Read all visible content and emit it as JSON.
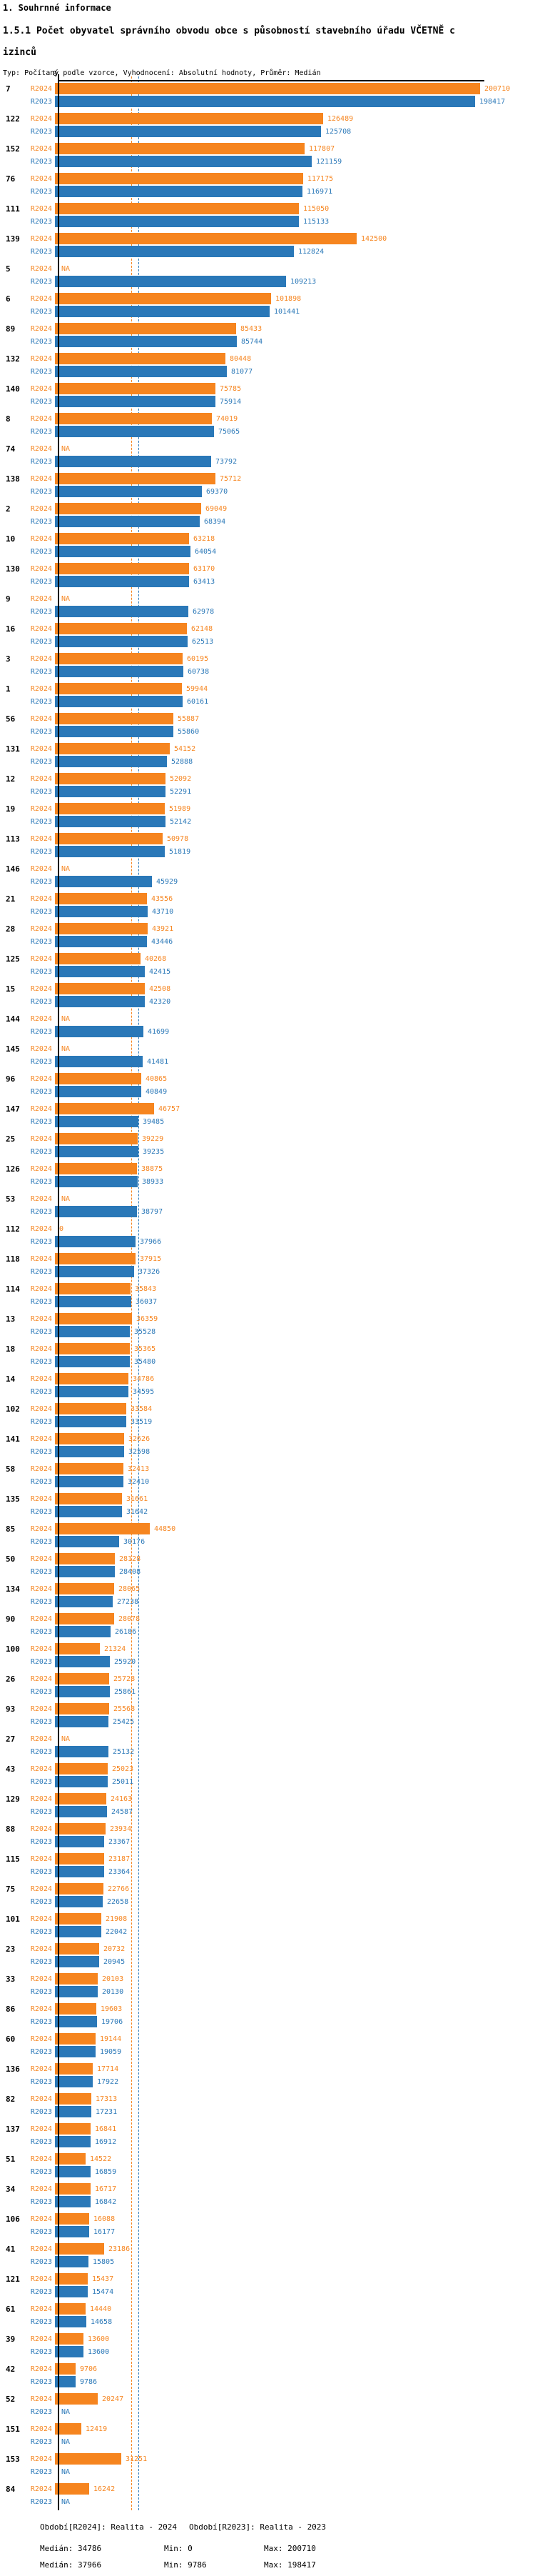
{
  "header": {
    "title": "1. Souhrnné informace",
    "subtitle_line1": "1.5.1 Počet obyvatel správního obvodu obce s působností stavebního úřadu VČETNĚ c",
    "subtitle_line2": "izinců",
    "meta": "Typ: Počítaný podle vzorce, Vyhodnocení: Absolutní hodnoty, Průměr: Medián"
  },
  "chart_data": {
    "type": "bar",
    "orientation": "horizontal",
    "axis": {
      "zero_label": "0",
      "max_value": 200710
    },
    "na_label": "NA",
    "series": [
      {
        "label": "R2024",
        "key": "r2024",
        "color": "#F6851F",
        "period": "Realita - 2024"
      },
      {
        "label": "R2023",
        "key": "r2023",
        "color": "#2A78B8",
        "period": "Realita - 2023"
      }
    ],
    "median_lines": [
      {
        "key": "r2024",
        "value": 34786,
        "color": "#F6851F"
      },
      {
        "key": "r2023",
        "value": 37966,
        "color": "#2A78B8"
      }
    ],
    "groups": [
      {
        "id": "7",
        "r2024": 200710,
        "r2023": 198417
      },
      {
        "id": "122",
        "r2024": 126489,
        "r2023": 125708
      },
      {
        "id": "152",
        "r2024": 117807,
        "r2023": 121159
      },
      {
        "id": "76",
        "r2024": 117175,
        "r2023": 116971
      },
      {
        "id": "111",
        "r2024": 115050,
        "r2023": 115133
      },
      {
        "id": "139",
        "r2024": 142500,
        "r2023": 112824
      },
      {
        "id": "5",
        "r2024": null,
        "r2023": 109213
      },
      {
        "id": "6",
        "r2024": 101898,
        "r2023": 101441
      },
      {
        "id": "89",
        "r2024": 85433,
        "r2023": 85744
      },
      {
        "id": "132",
        "r2024": 80448,
        "r2023": 81077
      },
      {
        "id": "140",
        "r2024": 75785,
        "r2023": 75914
      },
      {
        "id": "8",
        "r2024": 74019,
        "r2023": 75065
      },
      {
        "id": "74",
        "r2024": null,
        "r2023": 73792
      },
      {
        "id": "138",
        "r2024": 75712,
        "r2023": 69370
      },
      {
        "id": "2",
        "r2024": 69049,
        "r2023": 68394
      },
      {
        "id": "10",
        "r2024": 63218,
        "r2023": 64054
      },
      {
        "id": "130",
        "r2024": 63170,
        "r2023": 63413
      },
      {
        "id": "9",
        "r2024": null,
        "r2023": 62978
      },
      {
        "id": "16",
        "r2024": 62148,
        "r2023": 62513
      },
      {
        "id": "3",
        "r2024": 60195,
        "r2023": 60738
      },
      {
        "id": "1",
        "r2024": 59944,
        "r2023": 60161
      },
      {
        "id": "56",
        "r2024": 55887,
        "r2023": 55860
      },
      {
        "id": "131",
        "r2024": 54152,
        "r2023": 52888
      },
      {
        "id": "12",
        "r2024": 52092,
        "r2023": 52291
      },
      {
        "id": "19",
        "r2024": 51989,
        "r2023": 52142
      },
      {
        "id": "113",
        "r2024": 50978,
        "r2023": 51819
      },
      {
        "id": "146",
        "r2024": null,
        "r2023": 45929
      },
      {
        "id": "21",
        "r2024": 43556,
        "r2023": 43710
      },
      {
        "id": "28",
        "r2024": 43921,
        "r2023": 43446
      },
      {
        "id": "125",
        "r2024": 40268,
        "r2023": 42415
      },
      {
        "id": "15",
        "r2024": 42508,
        "r2023": 42320
      },
      {
        "id": "144",
        "r2024": null,
        "r2023": 41699
      },
      {
        "id": "145",
        "r2024": null,
        "r2023": 41481
      },
      {
        "id": "96",
        "r2024": 40865,
        "r2023": 40849
      },
      {
        "id": "147",
        "r2024": 46757,
        "r2023": 39485
      },
      {
        "id": "25",
        "r2024": 39229,
        "r2023": 39235
      },
      {
        "id": "126",
        "r2024": 38875,
        "r2023": 38933
      },
      {
        "id": "53",
        "r2024": null,
        "r2023": 38797
      },
      {
        "id": "112",
        "r2024": 0,
        "r2023": 37966
      },
      {
        "id": "118",
        "r2024": 37915,
        "r2023": 37326
      },
      {
        "id": "114",
        "r2024": 35843,
        "r2023": 36037
      },
      {
        "id": "13",
        "r2024": 36359,
        "r2023": 35528
      },
      {
        "id": "18",
        "r2024": 35365,
        "r2023": 35480
      },
      {
        "id": "14",
        "r2024": 34786,
        "r2023": 34595
      },
      {
        "id": "102",
        "r2024": 33584,
        "r2023": 33519
      },
      {
        "id": "141",
        "r2024": 32626,
        "r2023": 32598
      },
      {
        "id": "58",
        "r2024": 32413,
        "r2023": 32410
      },
      {
        "id": "135",
        "r2024": 31661,
        "r2023": 31642
      },
      {
        "id": "85",
        "r2024": 44850,
        "r2023": 30176
      },
      {
        "id": "50",
        "r2024": 28128,
        "r2023": 28408
      },
      {
        "id": "134",
        "r2024": 28065,
        "r2023": 27238
      },
      {
        "id": "90",
        "r2024": 28078,
        "r2023": 26186
      },
      {
        "id": "100",
        "r2024": 21324,
        "r2023": 25920
      },
      {
        "id": "26",
        "r2024": 25728,
        "r2023": 25861
      },
      {
        "id": "93",
        "r2024": 25568,
        "r2023": 25425
      },
      {
        "id": "27",
        "r2024": null,
        "r2023": 25132
      },
      {
        "id": "43",
        "r2024": 25023,
        "r2023": 25011
      },
      {
        "id": "129",
        "r2024": 24163,
        "r2023": 24587
      },
      {
        "id": "88",
        "r2024": 23934,
        "r2023": 23367
      },
      {
        "id": "115",
        "r2024": 23187,
        "r2023": 23364
      },
      {
        "id": "75",
        "r2024": 22766,
        "r2023": 22658
      },
      {
        "id": "101",
        "r2024": 21908,
        "r2023": 22042
      },
      {
        "id": "23",
        "r2024": 20732,
        "r2023": 20945
      },
      {
        "id": "33",
        "r2024": 20103,
        "r2023": 20130
      },
      {
        "id": "86",
        "r2024": 19603,
        "r2023": 19706
      },
      {
        "id": "60",
        "r2024": 19144,
        "r2023": 19059
      },
      {
        "id": "136",
        "r2024": 17714,
        "r2023": 17922
      },
      {
        "id": "82",
        "r2024": 17313,
        "r2023": 17231
      },
      {
        "id": "137",
        "r2024": 16841,
        "r2023": 16912
      },
      {
        "id": "51",
        "r2024": 14522,
        "r2023": 16859
      },
      {
        "id": "34",
        "r2024": 16717,
        "r2023": 16842
      },
      {
        "id": "106",
        "r2024": 16088,
        "r2023": 16177
      },
      {
        "id": "41",
        "r2024": 23186,
        "r2023": 15805
      },
      {
        "id": "121",
        "r2024": 15437,
        "r2023": 15474
      },
      {
        "id": "61",
        "r2024": 14440,
        "r2023": 14658
      },
      {
        "id": "39",
        "r2024": 13600,
        "r2023": 13600
      },
      {
        "id": "42",
        "r2024": 9706,
        "r2023": 9786
      },
      {
        "id": "52",
        "r2024": 20247,
        "r2023": null
      },
      {
        "id": "151",
        "r2024": 12419,
        "r2023": null
      },
      {
        "id": "153",
        "r2024": 31251,
        "r2023": null
      },
      {
        "id": "84",
        "r2024": 16242,
        "r2023": null
      }
    ]
  },
  "footer": {
    "legend_2024": "Období[R2024]: Realita - 2024",
    "legend_2023": "Období[R2023]: Realita - 2023",
    "stats_2024": {
      "median": "Medián: 34786",
      "min": "Min: 0",
      "max": "Max: 200710"
    },
    "stats_2023": {
      "median": "Medián: 37966",
      "min": "Min: 9786",
      "max": "Max: 198417"
    }
  }
}
